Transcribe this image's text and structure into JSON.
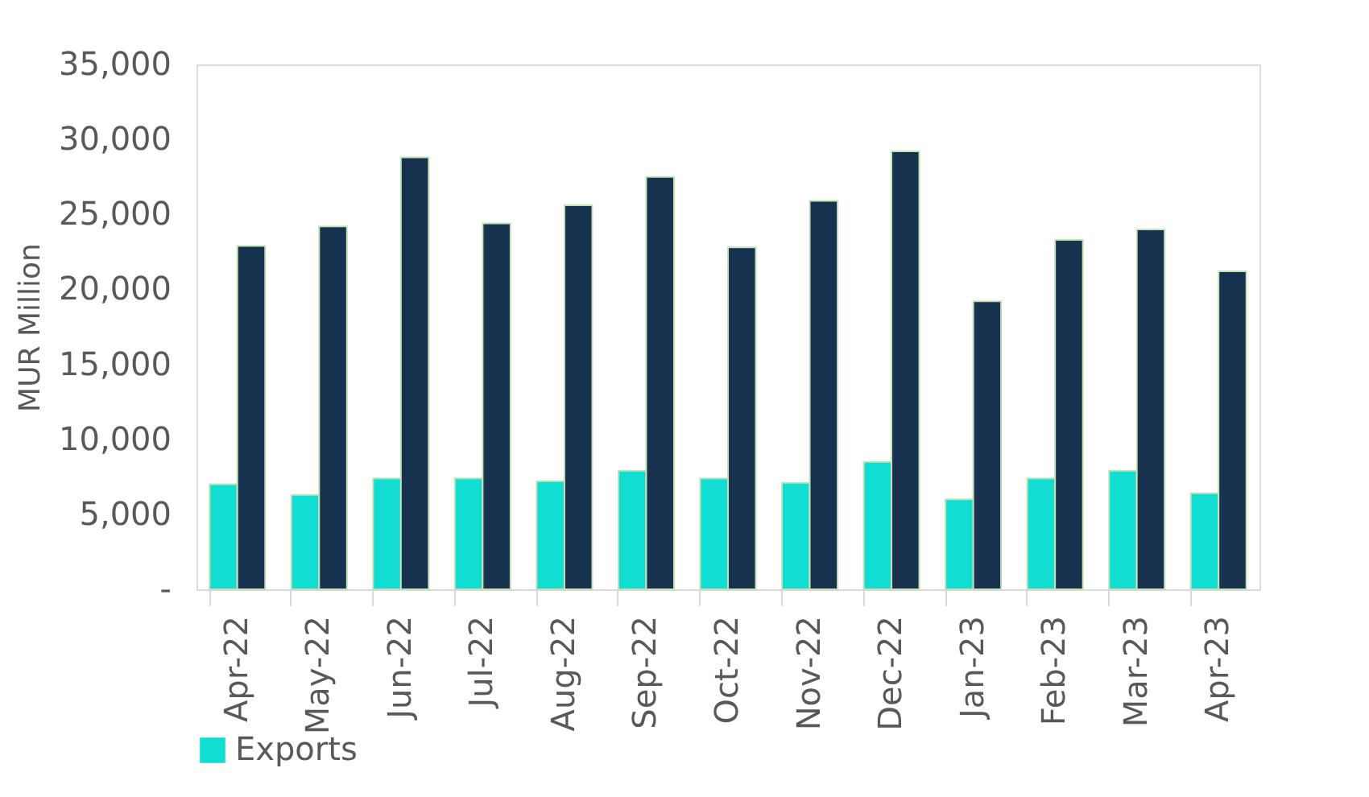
{
  "chart_data": {
    "type": "bar",
    "ylabel": "MUR Million",
    "categories": [
      "Apr-22",
      "May-22",
      "Jun-22",
      "Jul-22",
      "Aug-22",
      "Sep-22",
      "Oct-22",
      "Nov-22",
      "Dec-22",
      "Jan-23",
      "Feb-23",
      "Mar-23",
      "Apr-23"
    ],
    "series": [
      {
        "name": "Exports",
        "color": "#11ddd3",
        "values": [
          7000,
          6300,
          7400,
          7400,
          7200,
          7900,
          7400,
          7100,
          8500,
          6000,
          7400,
          7900,
          6400
        ]
      },
      {
        "color": "#16324f",
        "values": [
          22900,
          24200,
          28800,
          24400,
          25600,
          27500,
          22800,
          25900,
          29200,
          19200,
          23300,
          24000,
          21200
        ]
      }
    ],
    "ylim": [
      0,
      35000
    ],
    "yticks": [
      {
        "value": 0,
        "label": "-"
      },
      {
        "value": 5000,
        "label": "5,000"
      },
      {
        "value": 10000,
        "label": "10,000"
      },
      {
        "value": 15000,
        "label": "15,000"
      },
      {
        "value": 20000,
        "label": "20,000"
      },
      {
        "value": 25000,
        "label": "25,000"
      },
      {
        "value": 30000,
        "label": "30,000"
      },
      {
        "value": 35000,
        "label": "35,000"
      }
    ],
    "grid": false,
    "legend": "bottom"
  }
}
